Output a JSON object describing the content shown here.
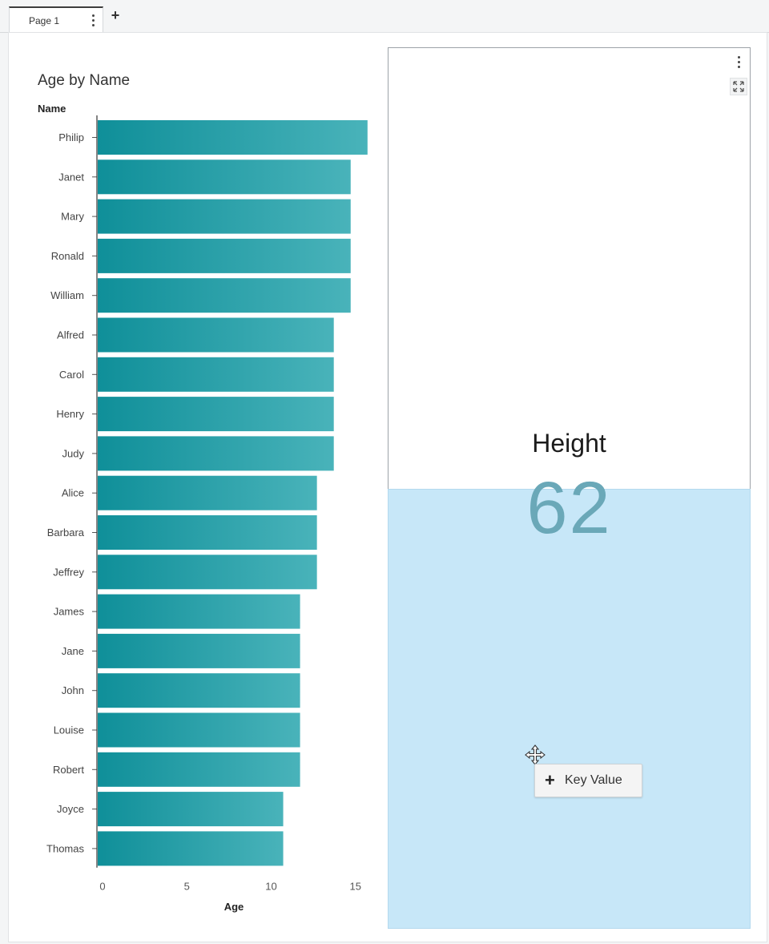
{
  "tabs": {
    "items": [
      {
        "label": "Page 1"
      }
    ],
    "add_label": "+"
  },
  "chart_data": {
    "type": "bar",
    "orientation": "horizontal",
    "title": "Age by Name",
    "ylabel": "Name",
    "xlabel": "Age",
    "categories": [
      "Philip",
      "Janet",
      "Mary",
      "Ronald",
      "William",
      "Alfred",
      "Carol",
      "Henry",
      "Judy",
      "Alice",
      "Barbara",
      "Jeffrey",
      "James",
      "Jane",
      "John",
      "Louise",
      "Robert",
      "Joyce",
      "Thomas"
    ],
    "values": [
      16,
      15,
      15,
      15,
      15,
      14,
      14,
      14,
      14,
      13,
      13,
      13,
      12,
      12,
      12,
      12,
      12,
      11,
      11
    ],
    "xlim": [
      0,
      16
    ],
    "xticks": [
      0,
      5,
      10,
      15
    ],
    "bar_color": "#1d97a0",
    "bar_color_light": "#46b1b8",
    "grid": false
  },
  "key_value": {
    "label": "Height",
    "value": "62",
    "value_color": "#6aa8b8"
  },
  "drop_zone": {
    "tooltip_label": "Key Value",
    "tooltip_icon": "plus-icon",
    "highlight_color": "#c7e7f8"
  }
}
